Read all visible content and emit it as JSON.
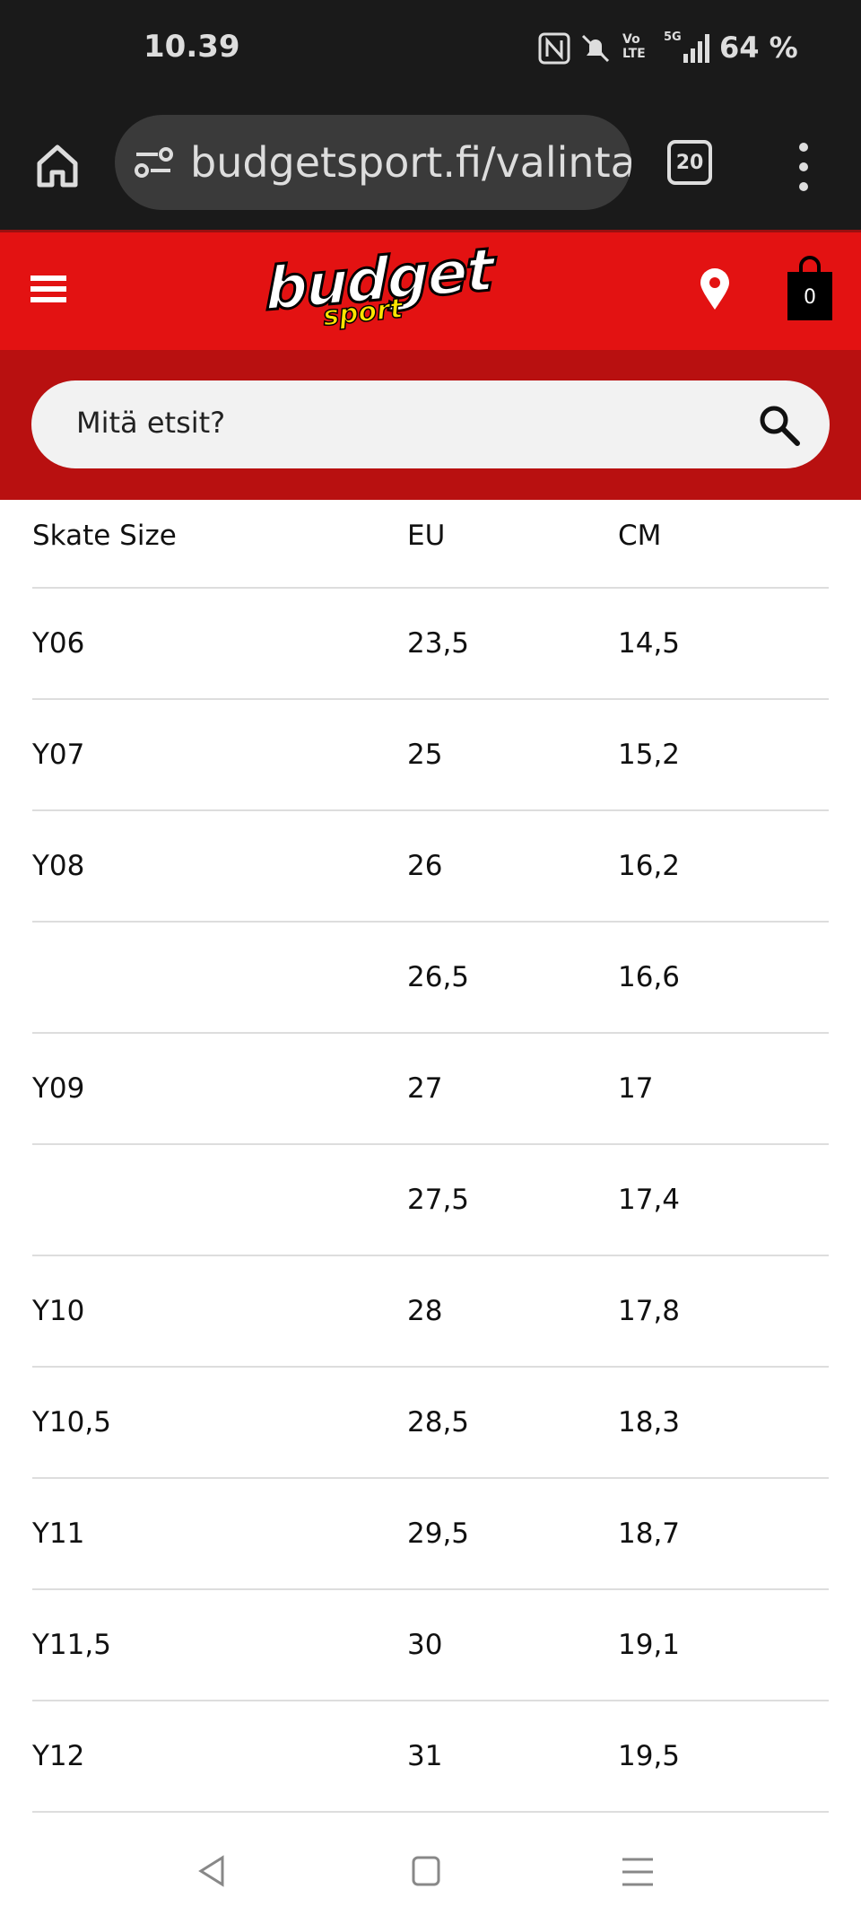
{
  "status": {
    "time": "10.39",
    "network": "5G",
    "volte": "Vo LTE",
    "battery": "64 %"
  },
  "browser": {
    "url": "budgetsport.fi/valintac",
    "tabs": "20"
  },
  "header": {
    "logo_main": "budget",
    "logo_sub": "sport",
    "cart_count": "0"
  },
  "search": {
    "placeholder": "Mitä etsit?"
  },
  "table": {
    "columns": [
      "Skate Size",
      "EU",
      "CM"
    ],
    "rows": [
      [
        "Y06",
        "23,5",
        "14,5"
      ],
      [
        "Y07",
        "25",
        "15,2"
      ],
      [
        "Y08",
        "26",
        "16,2"
      ],
      [
        null,
        "26,5",
        "16,6"
      ],
      [
        "Y09",
        "27",
        "17"
      ],
      [
        null,
        "27,5",
        "17,4"
      ],
      [
        "Y10",
        "28",
        "17,8"
      ],
      [
        "Y10,5",
        "28,5",
        "18,3"
      ],
      [
        "Y11",
        "29,5",
        "18,7"
      ],
      [
        "Y11,5",
        "30",
        "19,1"
      ],
      [
        "Y12",
        "31",
        "19,5"
      ]
    ]
  }
}
